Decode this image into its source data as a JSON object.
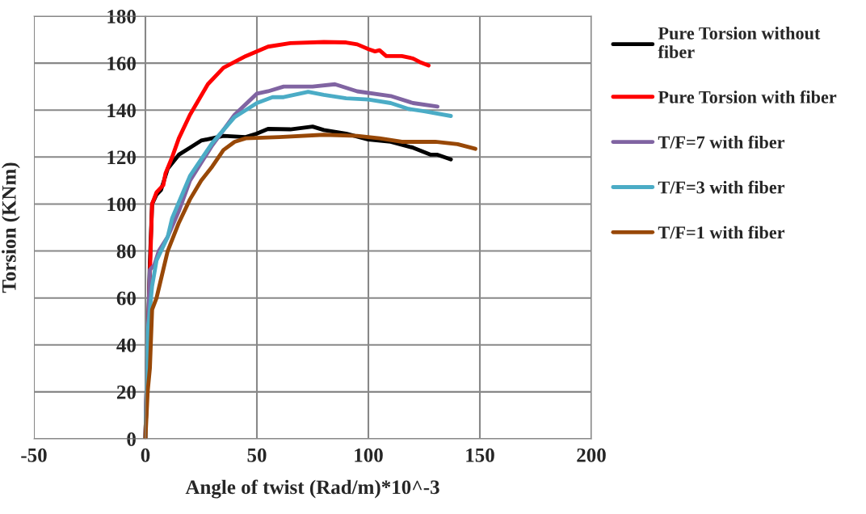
{
  "chart_data": {
    "type": "line",
    "xlabel": "Angle of twist (Rad/m)*10^-3",
    "ylabel": "Torsion (KNm)",
    "xlim": [
      -50,
      200
    ],
    "xticks": [
      -50,
      0,
      50,
      100,
      150,
      200
    ],
    "ylim": [
      0,
      180
    ],
    "yticks": [
      0,
      20,
      40,
      60,
      80,
      100,
      120,
      140,
      160,
      180
    ],
    "grid": true,
    "legend": "right",
    "marker": "none",
    "line_style": "solid",
    "series": [
      {
        "name": "Pure Torsion without fiber",
        "color": "#000000",
        "x": [
          0,
          1,
          2,
          3,
          5,
          7,
          10,
          15,
          20,
          25,
          35,
          45,
          50,
          55,
          65,
          75,
          80,
          90,
          100,
          110,
          120,
          128,
          131,
          137
        ],
        "values": [
          0,
          40,
          75,
          100,
          104,
          106,
          115,
          121,
          124,
          127,
          129,
          128.5,
          130,
          132,
          131.8,
          133,
          131.5,
          130,
          127.5,
          126.5,
          124,
          121,
          121,
          119
        ]
      },
      {
        "name": "Pure Torsion with fiber",
        "color": "#ff0000",
        "x": [
          0,
          1,
          2,
          3,
          5,
          8,
          9,
          12,
          15,
          20,
          28,
          35,
          45,
          55,
          65,
          80,
          90,
          95,
          100,
          103,
          105,
          108,
          115,
          120,
          123,
          127
        ],
        "values": [
          0,
          40,
          70,
          100,
          105,
          108,
          113,
          120,
          128,
          138,
          151,
          158,
          163,
          167,
          168.5,
          169,
          168.8,
          168,
          166,
          165,
          165.5,
          163,
          163,
          162,
          160.5,
          159
        ]
      },
      {
        "name": "T/F=7 with fiber",
        "color": "#8064a2",
        "x": [
          0,
          1,
          2,
          4,
          6,
          10,
          15,
          20,
          30,
          40,
          50,
          55,
          62,
          75,
          85,
          95,
          110,
          120,
          131
        ],
        "values": [
          0,
          40,
          72,
          74,
          80,
          86,
          97,
          110,
          125,
          138,
          147,
          148,
          150,
          150,
          151,
          148,
          146,
          143,
          141.5
        ]
      },
      {
        "name": "T/F=3 with fiber",
        "color": "#4bacc6",
        "x": [
          0,
          0.5,
          1,
          3,
          5,
          10,
          12,
          20,
          30,
          40,
          50,
          57,
          62,
          73,
          80,
          90,
          100,
          110,
          118,
          125,
          137
        ],
        "values": [
          0,
          20,
          45,
          65,
          76,
          86,
          94,
          112,
          126,
          137,
          143,
          145.5,
          145.5,
          147.8,
          146.5,
          145,
          144.5,
          143,
          140.5,
          139.5,
          137.5
        ]
      },
      {
        "name": "T/F=1 with fiber",
        "color": "#984807",
        "x": [
          0,
          1,
          2,
          3,
          5,
          7,
          10,
          15,
          20,
          25,
          30,
          35,
          40,
          45,
          60,
          80,
          95,
          105,
          115,
          130,
          140,
          148
        ],
        "values": [
          0,
          20,
          30,
          55,
          60,
          68,
          80,
          92,
          102,
          110,
          116,
          123,
          126.5,
          128,
          128.5,
          129.5,
          129,
          128,
          126.5,
          126.5,
          125.5,
          123.5
        ]
      }
    ]
  }
}
